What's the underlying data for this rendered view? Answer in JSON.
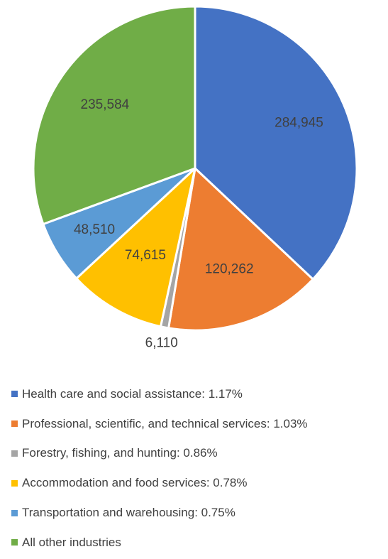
{
  "chart_data": {
    "type": "pie",
    "title": "",
    "categories": [
      "Health care and social assistance: 1.17%",
      "Professional, scientific, and technical services: 1.03%",
      "Forestry, fishing, and hunting: 0.86%",
      "Accommodation and food services: 0.78%",
      "Transportation and warehousing: 0.75%",
      "All other industries"
    ],
    "values": [
      284945,
      120262,
      6110,
      74615,
      48510,
      235584
    ],
    "data_labels": [
      "284,945",
      "120,262",
      "6,110",
      "74,615",
      "48,510",
      "235,584"
    ],
    "colors": [
      "#4472C4",
      "#ED7D31",
      "#A5A5A5",
      "#FFC000",
      "#5B9BD5",
      "#70AD47"
    ],
    "start_angle_deg": 0,
    "direction": "clockwise",
    "legend_position": "bottom"
  }
}
